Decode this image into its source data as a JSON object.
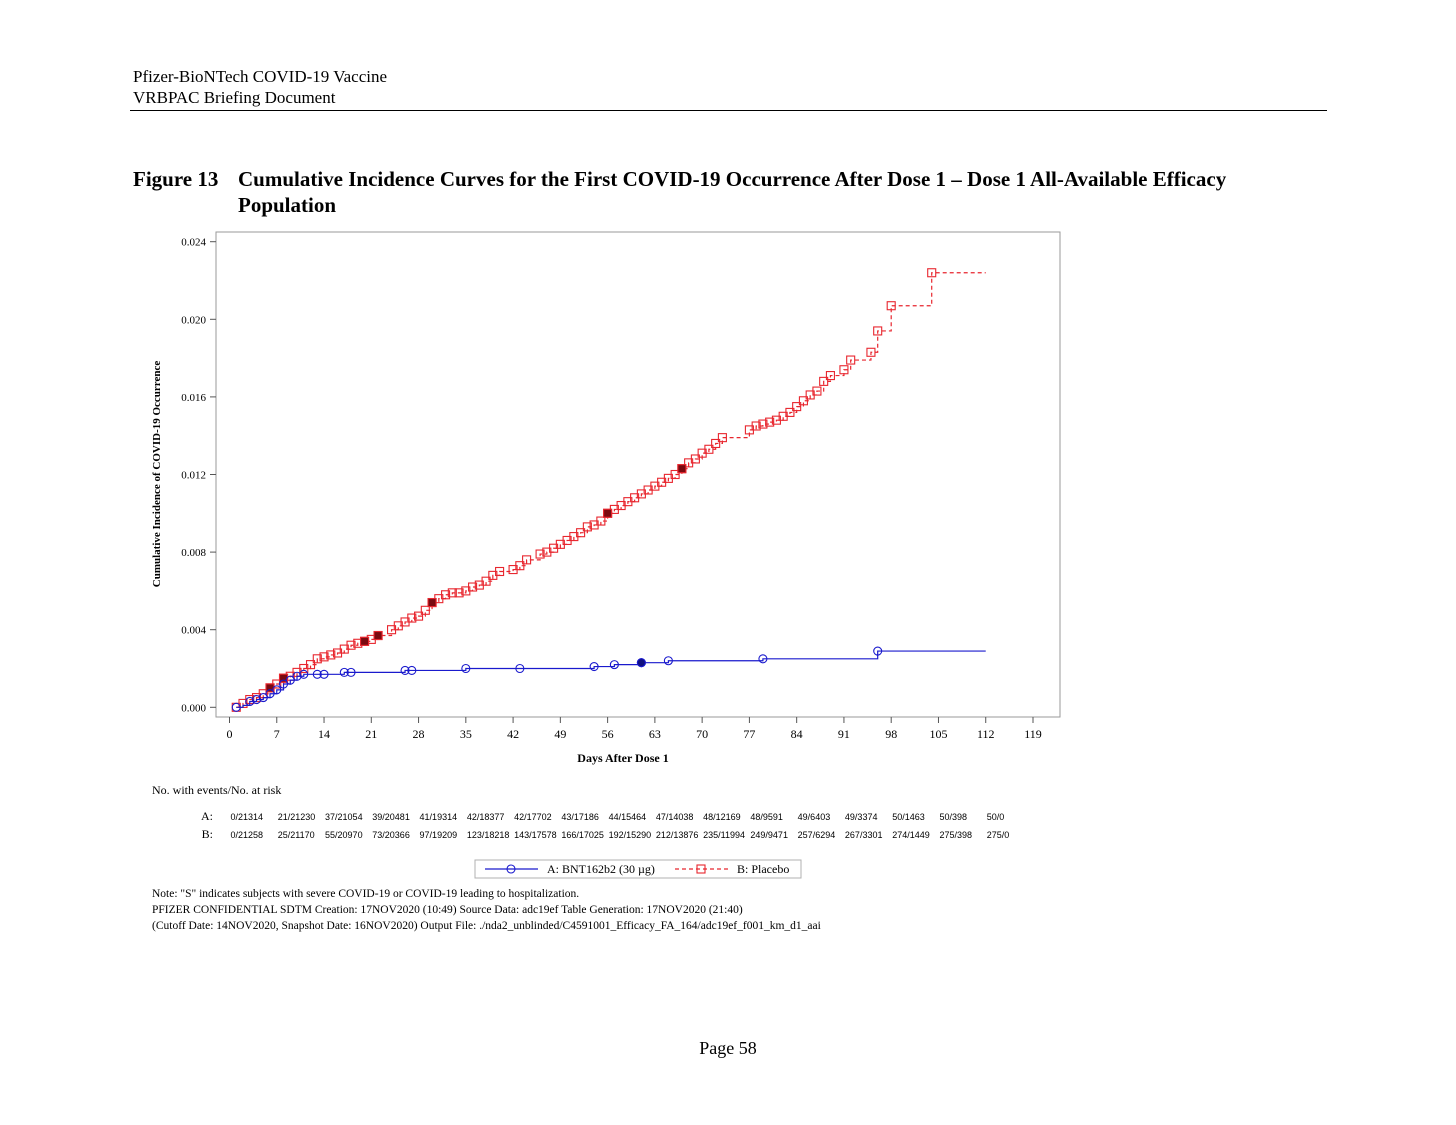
{
  "header": {
    "line1": "Pfizer-BioNTech COVID-19 Vaccine",
    "line2": "VRBPAC Briefing Document"
  },
  "figure": {
    "number": "Figure 13",
    "title": "Cumulative Incidence Curves for the First COVID-19 Occurrence After Dose 1 – Dose 1 All-Available Efficacy Population"
  },
  "chart_data": {
    "type": "line",
    "xlabel": "Days After Dose 1",
    "ylabel": "Cumulative Incidence of COVID-19 Occurrence",
    "xlim": [
      -2,
      123
    ],
    "ylim": [
      -0.0005,
      0.0245
    ],
    "xticks": [
      0,
      7,
      14,
      21,
      28,
      35,
      42,
      49,
      56,
      63,
      70,
      77,
      84,
      91,
      98,
      105,
      112,
      119
    ],
    "yticks": [
      0.0,
      0.004,
      0.008,
      0.012,
      0.016,
      0.02,
      0.024
    ],
    "ytick_labels": [
      "0.000",
      "0.004",
      "0.008",
      "0.012",
      "0.016",
      "0.020",
      "0.024"
    ],
    "grid": false,
    "legend_position": "bottom",
    "series": [
      {
        "name": "A: BNT162b2 (30 µg)",
        "color": "#1a1acd",
        "line_style": "solid",
        "marker": "circle",
        "step_points": [
          [
            1,
            0.0
          ],
          [
            2,
            0.0001
          ],
          [
            3,
            0.0003
          ],
          [
            4,
            0.0004
          ],
          [
            5,
            0.0005
          ],
          [
            6,
            0.0007
          ],
          [
            7,
            0.0009
          ],
          [
            8,
            0.0012
          ],
          [
            9,
            0.0014
          ],
          [
            10,
            0.0016
          ],
          [
            11,
            0.0017
          ],
          [
            13,
            0.0017
          ],
          [
            14,
            0.0017
          ],
          [
            17,
            0.0018
          ],
          [
            18,
            0.0018
          ],
          [
            26,
            0.0019
          ],
          [
            27,
            0.0019
          ],
          [
            35,
            0.002
          ],
          [
            43,
            0.002
          ],
          [
            54,
            0.0021
          ],
          [
            57,
            0.0022
          ],
          [
            61,
            0.0023
          ],
          [
            65,
            0.0024
          ],
          [
            79,
            0.0025
          ],
          [
            96,
            0.0029
          ],
          [
            112,
            0.0029
          ]
        ],
        "markers": [
          [
            1,
            0.0
          ],
          [
            3,
            0.0003
          ],
          [
            4,
            0.0004
          ],
          [
            5,
            0.0005
          ],
          [
            6,
            0.0007
          ],
          [
            7,
            0.0009
          ],
          [
            8,
            0.0012
          ],
          [
            9,
            0.0014
          ],
          [
            10,
            0.0016
          ],
          [
            11,
            0.0017
          ],
          [
            13,
            0.0017
          ],
          [
            14,
            0.0017
          ],
          [
            17,
            0.0018
          ],
          [
            18,
            0.0018
          ],
          [
            26,
            0.0019
          ],
          [
            27,
            0.0019
          ],
          [
            35,
            0.002
          ],
          [
            43,
            0.002
          ],
          [
            54,
            0.0021
          ],
          [
            57,
            0.0022
          ],
          [
            61,
            0.0023
          ],
          [
            65,
            0.0024
          ],
          [
            79,
            0.0025
          ],
          [
            96,
            0.0029
          ]
        ],
        "severe_markers": [
          [
            61,
            0.0023
          ]
        ]
      },
      {
        "name": "B: Placebo",
        "color": "#e8262e",
        "line_style": "dashed",
        "marker": "square",
        "step_points": [
          [
            1,
            0.0
          ],
          [
            2,
            0.0002
          ],
          [
            3,
            0.0004
          ],
          [
            4,
            0.0005
          ],
          [
            5,
            0.0007
          ],
          [
            6,
            0.001
          ],
          [
            7,
            0.0012
          ],
          [
            8,
            0.0015
          ],
          [
            9,
            0.0016
          ],
          [
            10,
            0.0018
          ],
          [
            11,
            0.002
          ],
          [
            12,
            0.0022
          ],
          [
            13,
            0.0025
          ],
          [
            14,
            0.0026
          ],
          [
            15,
            0.0027
          ],
          [
            16,
            0.0028
          ],
          [
            17,
            0.003
          ],
          [
            18,
            0.0032
          ],
          [
            19,
            0.0033
          ],
          [
            20,
            0.0034
          ],
          [
            21,
            0.0035
          ],
          [
            22,
            0.0037
          ],
          [
            24,
            0.004
          ],
          [
            25,
            0.0042
          ],
          [
            26,
            0.0044
          ],
          [
            27,
            0.0046
          ],
          [
            28,
            0.0047
          ],
          [
            29,
            0.005
          ],
          [
            30,
            0.0054
          ],
          [
            31,
            0.0056
          ],
          [
            32,
            0.0058
          ],
          [
            33,
            0.0059
          ],
          [
            34,
            0.0059
          ],
          [
            35,
            0.006
          ],
          [
            36,
            0.0062
          ],
          [
            37,
            0.0063
          ],
          [
            38,
            0.0065
          ],
          [
            39,
            0.0068
          ],
          [
            40,
            0.007
          ],
          [
            42,
            0.0071
          ],
          [
            43,
            0.0073
          ],
          [
            44,
            0.0076
          ],
          [
            46,
            0.0079
          ],
          [
            47,
            0.008
          ],
          [
            48,
            0.0082
          ],
          [
            49,
            0.0084
          ],
          [
            50,
            0.0086
          ],
          [
            51,
            0.0088
          ],
          [
            52,
            0.009
          ],
          [
            53,
            0.0093
          ],
          [
            54,
            0.0094
          ],
          [
            55,
            0.0096
          ],
          [
            56,
            0.01
          ],
          [
            57,
            0.0102
          ],
          [
            58,
            0.0104
          ],
          [
            59,
            0.0106
          ],
          [
            60,
            0.0108
          ],
          [
            61,
            0.011
          ],
          [
            62,
            0.0112
          ],
          [
            63,
            0.0114
          ],
          [
            64,
            0.0116
          ],
          [
            65,
            0.0118
          ],
          [
            66,
            0.012
          ],
          [
            67,
            0.0123
          ],
          [
            68,
            0.0126
          ],
          [
            69,
            0.0128
          ],
          [
            70,
            0.0131
          ],
          [
            71,
            0.0133
          ],
          [
            72,
            0.0136
          ],
          [
            73,
            0.0139
          ],
          [
            77,
            0.0143
          ],
          [
            78,
            0.0145
          ],
          [
            79,
            0.0146
          ],
          [
            80,
            0.0147
          ],
          [
            81,
            0.0148
          ],
          [
            82,
            0.015
          ],
          [
            83,
            0.0152
          ],
          [
            84,
            0.0155
          ],
          [
            85,
            0.0158
          ],
          [
            86,
            0.0161
          ],
          [
            87,
            0.0163
          ],
          [
            88,
            0.0168
          ],
          [
            89,
            0.0171
          ],
          [
            91,
            0.0174
          ],
          [
            92,
            0.0179
          ],
          [
            95,
            0.0183
          ],
          [
            96,
            0.0194
          ],
          [
            98,
            0.0207
          ],
          [
            104,
            0.0224
          ],
          [
            112,
            0.0224
          ]
        ],
        "markers": [
          [
            1,
            0.0
          ],
          [
            2,
            0.0002
          ],
          [
            3,
            0.0004
          ],
          [
            4,
            0.0005
          ],
          [
            5,
            0.0007
          ],
          [
            6,
            0.001
          ],
          [
            7,
            0.0012
          ],
          [
            8,
            0.0015
          ],
          [
            9,
            0.0016
          ],
          [
            10,
            0.0018
          ],
          [
            11,
            0.002
          ],
          [
            12,
            0.0022
          ],
          [
            13,
            0.0025
          ],
          [
            14,
            0.0026
          ],
          [
            15,
            0.0027
          ],
          [
            16,
            0.0028
          ],
          [
            17,
            0.003
          ],
          [
            18,
            0.0032
          ],
          [
            19,
            0.0033
          ],
          [
            20,
            0.0034
          ],
          [
            21,
            0.0035
          ],
          [
            22,
            0.0037
          ],
          [
            24,
            0.004
          ],
          [
            25,
            0.0042
          ],
          [
            26,
            0.0044
          ],
          [
            27,
            0.0046
          ],
          [
            28,
            0.0047
          ],
          [
            29,
            0.005
          ],
          [
            30,
            0.0054
          ],
          [
            31,
            0.0056
          ],
          [
            32,
            0.0058
          ],
          [
            33,
            0.0059
          ],
          [
            34,
            0.0059
          ],
          [
            35,
            0.006
          ],
          [
            36,
            0.0062
          ],
          [
            37,
            0.0063
          ],
          [
            38,
            0.0065
          ],
          [
            39,
            0.0068
          ],
          [
            40,
            0.007
          ],
          [
            42,
            0.0071
          ],
          [
            43,
            0.0073
          ],
          [
            44,
            0.0076
          ],
          [
            46,
            0.0079
          ],
          [
            47,
            0.008
          ],
          [
            48,
            0.0082
          ],
          [
            49,
            0.0084
          ],
          [
            50,
            0.0086
          ],
          [
            51,
            0.0088
          ],
          [
            52,
            0.009
          ],
          [
            53,
            0.0093
          ],
          [
            54,
            0.0094
          ],
          [
            55,
            0.0096
          ],
          [
            56,
            0.01
          ],
          [
            57,
            0.0102
          ],
          [
            58,
            0.0104
          ],
          [
            59,
            0.0106
          ],
          [
            60,
            0.0108
          ],
          [
            61,
            0.011
          ],
          [
            62,
            0.0112
          ],
          [
            63,
            0.0114
          ],
          [
            64,
            0.0116
          ],
          [
            65,
            0.0118
          ],
          [
            66,
            0.012
          ],
          [
            67,
            0.0123
          ],
          [
            68,
            0.0126
          ],
          [
            69,
            0.0128
          ],
          [
            70,
            0.0131
          ],
          [
            71,
            0.0133
          ],
          [
            72,
            0.0136
          ],
          [
            73,
            0.0139
          ],
          [
            77,
            0.0143
          ],
          [
            78,
            0.0145
          ],
          [
            79,
            0.0146
          ],
          [
            80,
            0.0147
          ],
          [
            81,
            0.0148
          ],
          [
            82,
            0.015
          ],
          [
            83,
            0.0152
          ],
          [
            84,
            0.0155
          ],
          [
            85,
            0.0158
          ],
          [
            86,
            0.0161
          ],
          [
            87,
            0.0163
          ],
          [
            88,
            0.0168
          ],
          [
            89,
            0.0171
          ],
          [
            91,
            0.0174
          ],
          [
            92,
            0.0179
          ],
          [
            95,
            0.0183
          ],
          [
            96,
            0.0194
          ],
          [
            98,
            0.0207
          ],
          [
            104,
            0.0224
          ]
        ],
        "severe_markers": [
          [
            6,
            0.001
          ],
          [
            8,
            0.0015
          ],
          [
            20,
            0.0034
          ],
          [
            22,
            0.0037
          ],
          [
            30,
            0.0054
          ],
          [
            56,
            0.01
          ],
          [
            67,
            0.0123
          ]
        ]
      }
    ],
    "risk_table": {
      "label": "No. with events/No. at risk",
      "days": [
        0,
        7,
        14,
        21,
        28,
        35,
        42,
        49,
        56,
        63,
        70,
        77,
        84,
        91,
        98,
        105,
        112
      ],
      "rows": [
        {
          "name": "A:",
          "values": [
            "0/21314",
            "21/21230",
            "37/21054",
            "39/20481",
            "41/19314",
            "42/18377",
            "42/17702",
            "43/17186",
            "44/15464",
            "47/14038",
            "48/12169",
            "48/9591",
            "49/6403",
            "49/3374",
            "50/1463",
            "50/398",
            "50/0"
          ]
        },
        {
          "name": "B:",
          "values": [
            "0/21258",
            "25/21170",
            "55/20970",
            "73/20366",
            "97/19209",
            "123/18218",
            "143/17578",
            "166/17025",
            "192/15290",
            "212/13876",
            "235/11994",
            "249/9471",
            "257/6294",
            "267/3301",
            "274/1449",
            "275/398",
            "275/0"
          ]
        }
      ]
    }
  },
  "notes": {
    "line1": "Note: \"S\" indicates subjects with severe COVID-19 or COVID-19 leading to hospitalization.",
    "line2": "PFIZER CONFIDENTIAL  SDTM Creation: 17NOV2020 (10:49)  Source Data: adc19ef  Table Generation: 17NOV2020 (21:40)",
    "line3": "(Cutoff Date: 14NOV2020, Snapshot Date: 16NOV2020) Output File: ./nda2_unblinded/C4591001_Efficacy_FA_164/adc19ef_f001_km_d1_aai"
  },
  "page": {
    "number": "Page 58"
  }
}
